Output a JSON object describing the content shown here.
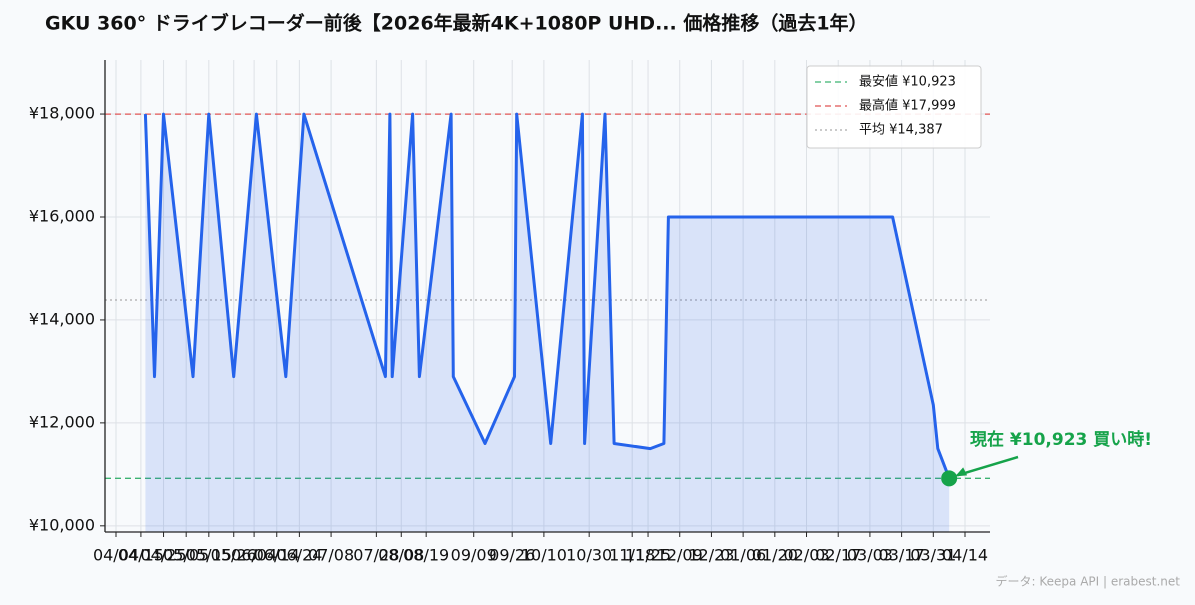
{
  "chart_data": {
    "type": "line",
    "title": "GKU 360° ドライブレコーダー前後【2026年最新4K+1080P UHD... 価格推移（過去1年）",
    "x": [
      "04/17",
      "04/21",
      "04/25",
      "05/08",
      "05/15",
      "05/26",
      "06/05",
      "06/18",
      "06/26",
      "08/01",
      "08/03",
      "08/04",
      "08/13",
      "08/16",
      "08/30",
      "08/31",
      "09/14",
      "09/27",
      "09/28",
      "10/13",
      "10/27",
      "10/28",
      "11/06",
      "11/10",
      "11/26",
      "12/02",
      "12/04",
      "03/13",
      "03/31",
      "04/02",
      "04/07"
    ],
    "series": [
      {
        "name": "価格",
        "color": "#2563eb",
        "fill": "rgba(37,99,235,0.15)",
        "values": [
          17999,
          12900,
          17999,
          12900,
          17999,
          12900,
          17999,
          12900,
          17999,
          12900,
          17999,
          12900,
          17999,
          12900,
          17999,
          12900,
          11600,
          12900,
          17999,
          11600,
          17999,
          11600,
          17999,
          11600,
          11500,
          11600,
          15999,
          15999,
          12350,
          11500,
          10923
        ]
      }
    ],
    "ylim": [
      9880,
      19050
    ],
    "yticks": [
      {
        "value": 10000,
        "label": "¥10,000"
      },
      {
        "value": 12000,
        "label": "¥12,000"
      },
      {
        "value": 14000,
        "label": "¥14,000"
      },
      {
        "value": 16000,
        "label": "¥16,000"
      },
      {
        "value": 18000,
        "label": "¥18,000"
      }
    ],
    "xticks": [
      "04/04",
      "04/15",
      "04/25",
      "05/05",
      "05/15",
      "05/26",
      "06/04",
      "06/14",
      "06/24",
      "07/08",
      "07/28",
      "08/08",
      "08/19",
      "09/09",
      "09/26",
      "10/10",
      "10/30",
      "11/18",
      "11/25",
      "12/09",
      "12/23",
      "01/06",
      "01/20",
      "02/03",
      "02/17",
      "03/03",
      "03/17",
      "03/31",
      "04/14"
    ],
    "grid": true,
    "reference_lines": [
      {
        "label": "最安値 ¥10,923",
        "value": 10923,
        "color": "#3cb371",
        "dash": "dashed"
      },
      {
        "label": "最高値 ¥17,999",
        "value": 17999,
        "color": "#e05555",
        "dash": "dashed"
      },
      {
        "label": "平均 ¥14,387",
        "value": 14387,
        "color": "#aaaaaa",
        "dash": "dotted"
      }
    ],
    "legend": "upper right",
    "annotation": {
      "text": "現在 ¥10,923 買い時!",
      "color": "#16a34a"
    },
    "footer": "データ: Keepa API | erabest.net"
  }
}
